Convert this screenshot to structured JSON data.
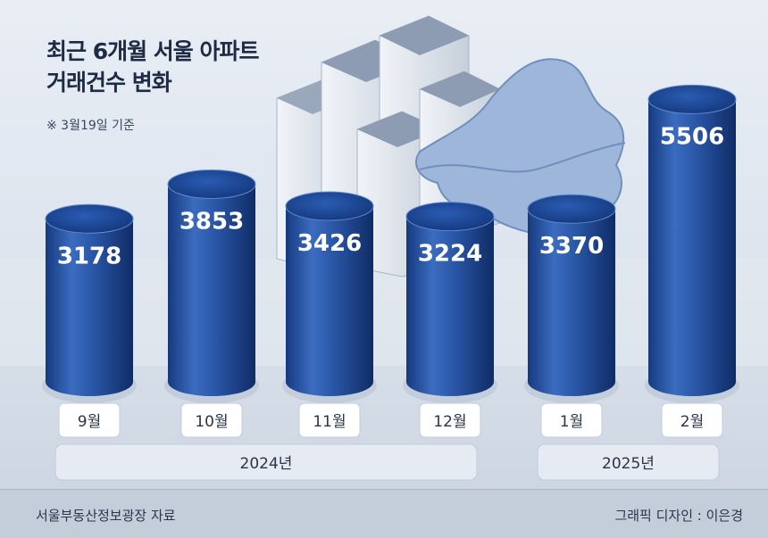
{
  "title_line1": "최근 6개월 서울 아파트",
  "title_line2": "거래건수 변화",
  "note": "※ 3월19일 기준",
  "source": "서울부동산정보광장 자료",
  "credit": "그래픽 디자인 : 이은경",
  "colors": {
    "bar_dark": "#173d86",
    "bar_mid": "#2f5fb5",
    "bar_light": "#4f82d2",
    "map": "#9db6d9"
  },
  "chart_data": {
    "type": "bar",
    "title": "최근 6개월 서울 아파트 거래건수 변화",
    "categories": [
      "9월",
      "10월",
      "11월",
      "12월",
      "1월",
      "2월"
    ],
    "values": [
      3178,
      3853,
      3426,
      3224,
      3370,
      5506
    ],
    "groups": [
      {
        "label": "2024년",
        "span": [
          0,
          3
        ]
      },
      {
        "label": "2025년",
        "span": [
          4,
          5
        ]
      }
    ],
    "ylim": [
      0,
      6000
    ],
    "grid": false,
    "legend": "none"
  }
}
